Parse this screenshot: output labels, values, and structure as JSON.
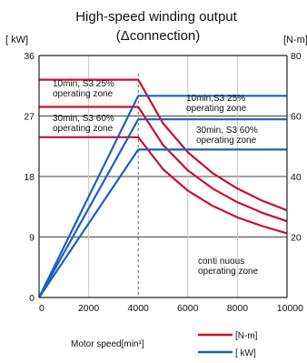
{
  "chart_data": {
    "type": "line",
    "title": "High-speed winding output",
    "subtitle": "(Δconnection)",
    "left_unit": "[ kW]",
    "right_unit": "[N-m]",
    "xlabel": "Motor speed[min¹]",
    "x_ticks": [
      "0",
      "2000",
      "4000",
      "6000",
      "8000",
      "10000"
    ],
    "y_left_ticks": [
      "0",
      "9",
      "18",
      "27",
      "36"
    ],
    "y_right_ticks": [
      "20",
      "40",
      "60",
      "80"
    ],
    "xlim": [
      0,
      10000
    ],
    "ylim_left": [
      0,
      36
    ],
    "ylim_right": [
      0,
      80
    ],
    "grid": true,
    "reference_line_x": 4000,
    "series": [
      {
        "axis": "right",
        "color": "#c8102e",
        "x": [
          0,
          4000,
          5000,
          6000,
          7000,
          8000,
          9000,
          10000
        ],
        "y": [
          72,
          72,
          57.6,
          48,
          41.1,
          36,
          32,
          28.8
        ]
      },
      {
        "axis": "right",
        "color": "#c8102e",
        "x": [
          0,
          4000,
          5000,
          6000,
          7000,
          8000,
          9000,
          10000
        ],
        "y": [
          63,
          63,
          50.4,
          42,
          36,
          31.5,
          28,
          25.2
        ]
      },
      {
        "axis": "right",
        "color": "#c8102e",
        "x": [
          0,
          4000,
          5000,
          6000,
          7000,
          8000,
          9000,
          10000
        ],
        "y": [
          53,
          53,
          42.4,
          35.3,
          30.3,
          26.5,
          23.6,
          21.2
        ]
      },
      {
        "axis": "left",
        "color": "#1f5fbf",
        "x": [
          0,
          4000,
          10000
        ],
        "y": [
          0,
          30,
          30
        ]
      },
      {
        "axis": "left",
        "color": "#1f5fbf",
        "x": [
          0,
          4000,
          10000
        ],
        "y": [
          0,
          26.5,
          26.5
        ]
      },
      {
        "axis": "left",
        "color": "#1f5fbf",
        "x": [
          0,
          4000,
          10000
        ],
        "y": [
          0,
          22,
          22
        ]
      }
    ],
    "annotations": [
      {
        "lines": [
          "10min, S3 25%",
          "operating zone"
        ]
      },
      {
        "lines": [
          "30min, S3 60%",
          "operating zone"
        ]
      },
      {
        "lines": [
          "10min,S3 25%",
          "operating zone"
        ]
      },
      {
        "lines": [
          "30min, S3 60%",
          "operating zone"
        ]
      },
      {
        "lines": [
          "conti nuous",
          "operating zone"
        ]
      }
    ],
    "legend": [
      {
        "label": "[N-m]",
        "color": "#c8102e"
      },
      {
        "label": "[ kW]",
        "color": "#1f5fbf"
      }
    ]
  }
}
